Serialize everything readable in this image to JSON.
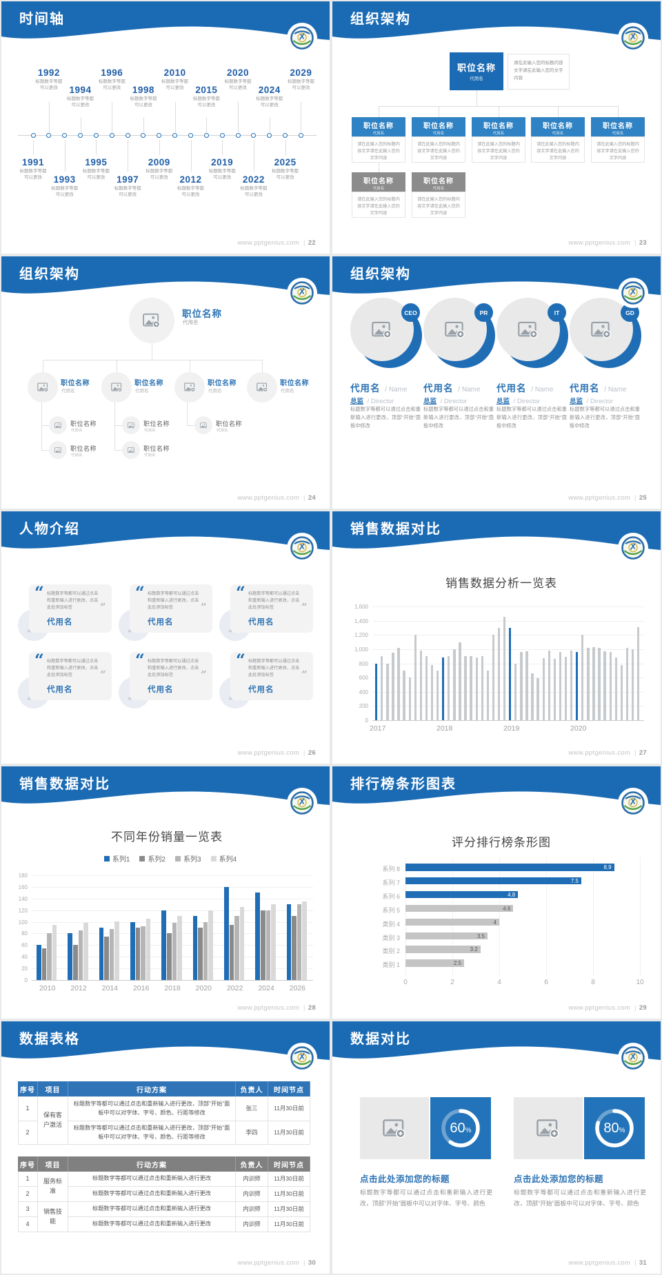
{
  "page": {
    "footer_site": "www.pptgenius.com",
    "footer_divider": "|"
  },
  "colors": {
    "accent": "#1b6bb4",
    "child_blue": "#2f82c3",
    "chart_blue": "#1f6db5",
    "chart_gray": "#c6cacd",
    "table_header_blue": "#2f74b6",
    "table_header_gray": "#808080",
    "name_blue": "#2e74b5",
    "gray_node": "#8c8c8c"
  },
  "icons": {
    "quote_open": "“",
    "quote_close": "”"
  },
  "slides": {
    "timeline": {
      "title": "时间轴",
      "page_no": "22",
      "items": [
        {
          "year": "1991",
          "desc": "标题数字等都可以更改",
          "side": "bottom",
          "level": "high"
        },
        {
          "year": "1992",
          "desc": "标题数字等都可以更改",
          "side": "top",
          "level": "high"
        },
        {
          "year": "1993",
          "desc": "标题数字等都可以更改",
          "side": "bottom",
          "level": "low"
        },
        {
          "year": "1994",
          "desc": "标题数字等都可以更改",
          "side": "top",
          "level": "low"
        },
        {
          "year": "1995",
          "desc": "标题数字等都可以更改",
          "side": "bottom",
          "level": "high"
        },
        {
          "year": "1996",
          "desc": "标题数字等都可以更改",
          "side": "top",
          "level": "high"
        },
        {
          "year": "1997",
          "desc": "标题数字等都可以更改",
          "side": "bottom",
          "level": "low"
        },
        {
          "year": "1998",
          "desc": "标题数字等都可以更改",
          "side": "top",
          "level": "low"
        },
        {
          "year": "2009",
          "desc": "标题数字等都可以更改",
          "side": "bottom",
          "level": "high"
        },
        {
          "year": "2010",
          "desc": "标题数字等都可以更改",
          "side": "top",
          "level": "high"
        },
        {
          "year": "2012",
          "desc": "标题数字等都可以更改",
          "side": "bottom",
          "level": "low"
        },
        {
          "year": "2015",
          "desc": "标题数字等都可以更改",
          "side": "top",
          "level": "low"
        },
        {
          "year": "2019",
          "desc": "标题数字等都可以更改",
          "side": "bottom",
          "level": "high"
        },
        {
          "year": "2020",
          "desc": "标题数字等都可以更改",
          "side": "top",
          "level": "high"
        },
        {
          "year": "2022",
          "desc": "标题数字等都可以更改",
          "side": "bottom",
          "level": "low"
        },
        {
          "year": "2024",
          "desc": "标题数字等都可以更改",
          "side": "top",
          "level": "low"
        },
        {
          "year": "2025",
          "desc": "标题数字等都可以更改",
          "side": "bottom",
          "level": "high"
        },
        {
          "year": "2029",
          "desc": "标题数字等都可以更改",
          "side": "top",
          "level": "high"
        }
      ]
    },
    "org1": {
      "title": "组织架构",
      "page_no": "23",
      "root": {
        "name": "职位名称",
        "alias": "代用名"
      },
      "note": "请在此输入您的标题内容文字请在此输入您的文字内容",
      "children": [
        {
          "name": "职位名称",
          "alias": "代用名",
          "desc": "请在此输入您的标题内容文字请在此输入您的文字内容"
        },
        {
          "name": "职位名称",
          "alias": "代用名",
          "desc": "请在此输入您的标题内容文字请在此输入您的文字内容"
        },
        {
          "name": "职位名称",
          "alias": "代用名",
          "desc": "请在此输入您的标题内容文字请在此输入您的文字内容"
        },
        {
          "name": "职位名称",
          "alias": "代用名",
          "desc": "请在此输入您的标题内容文字请在此输入您的文字内容"
        },
        {
          "name": "职位名称",
          "alias": "代用名",
          "desc": "请在此输入您的标题内容文字请在此输入您的文字内容"
        }
      ],
      "children_gray": [
        {
          "name": "职位名称",
          "alias": "代用名",
          "desc": "请在此输入您的标题内容文字请在此输入您的文字内容"
        },
        {
          "name": "职位名称",
          "alias": "代用名",
          "desc": "请在此输入您的标题内容文字请在此输入您的文字内容"
        }
      ]
    },
    "org2": {
      "title": "组织架构",
      "page_no": "24",
      "root": {
        "name": "职位名称",
        "alias": "代用名"
      },
      "level2": [
        {
          "name": "职位名称",
          "alias": "代用名"
        },
        {
          "name": "职位名称",
          "alias": "代用名"
        },
        {
          "name": "职位名称",
          "alias": "代用名"
        },
        {
          "name": "职位名称",
          "alias": "代用名"
        }
      ],
      "level3_cols": [
        [
          {
            "name": "职位名称",
            "alias": "代用名"
          },
          {
            "name": "职位名称",
            "alias": "代用名"
          }
        ],
        [
          {
            "name": "职位名称",
            "alias": "代用名"
          },
          {
            "name": "职位名称",
            "alias": "代用名"
          }
        ],
        [
          {
            "name": "职位名称",
            "alias": "代用名"
          }
        ]
      ]
    },
    "org3": {
      "title": "组织架构",
      "page_no": "25",
      "members": [
        {
          "badge": "CEO",
          "name": "代用名",
          "name_en": "Name",
          "role": "总监",
          "role_en": "Director",
          "desc": "标题数字等都可以通过点击和重新输入进行更改，顶部“开始”面板中修改"
        },
        {
          "badge": "PR",
          "name": "代用名",
          "name_en": "Name",
          "role": "总监",
          "role_en": "Director",
          "desc": "标题数字等都可以通过点击和重新输入进行更改，顶部“开始”面板中修改"
        },
        {
          "badge": "IT",
          "name": "代用名",
          "name_en": "Name",
          "role": "总监",
          "role_en": "Director",
          "desc": "标题数字等都可以通过点击和重新输入进行更改，顶部“开始”面板中修改"
        },
        {
          "badge": "GD",
          "name": "代用名",
          "name_en": "Name",
          "role": "总监",
          "role_en": "Director",
          "desc": "标题数字等都可以通过点击和重新输入进行更改，顶部“开始”面板中修改"
        }
      ]
    },
    "people": {
      "title": "人物介绍",
      "page_no": "26",
      "cards": [
        {
          "quote": "标题数字等都可以通过点击和重新输入进行更改，点击此处添加标签",
          "name": "代用名"
        },
        {
          "quote": "标题数字等都可以通过点击和重新输入进行更改，点击此处添加标签",
          "name": "代用名"
        },
        {
          "quote": "标题数字等都可以通过点击和重新输入进行更改，点击此处添加标签",
          "name": "代用名"
        },
        {
          "quote": "标题数字等都可以通过点击和重新输入进行更改，点击此处添加标签",
          "name": "代用名"
        },
        {
          "quote": "标题数字等都可以通过点击和重新输入进行更改，点击此处添加标签",
          "name": "代用名"
        },
        {
          "quote": "标题数字等都可以通过点击和重新输入进行更改，点击此处添加标签",
          "name": "代用名"
        }
      ]
    },
    "sales1": {
      "title": "销售数据对比",
      "page_no": "27"
    },
    "sales2": {
      "title": "销售数据对比",
      "page_no": "28"
    },
    "ranking": {
      "title": "排行榜条形图表",
      "page_no": "29"
    },
    "tables": {
      "title": "数据表格",
      "page_no": "30",
      "table1": {
        "headers": [
          "序号",
          "项目",
          "行动方案",
          "负责人",
          "时间节点"
        ],
        "project": "保有客户激活",
        "rows": [
          {
            "no": "1",
            "action": "标题数字等都可以通过点击和重新输入进行更改，顶部“开始”面板中可以对字体、字号、颜色、行距等修改",
            "owner": "张三",
            "time": "11月30日前"
          },
          {
            "no": "2",
            "action": "标题数字等都可以通过点击和重新输入进行更改，顶部“开始”面板中可以对字体、字号、颜色、行距等修改",
            "owner": "李四",
            "time": "11月30日前"
          }
        ]
      },
      "table2": {
        "headers": [
          "序号",
          "项目",
          "行动方案",
          "负责人",
          "时间节点"
        ],
        "groups": [
          {
            "project": "服务标准",
            "rows": [
              {
                "no": "1",
                "action": "标题数字等都可以通过点击和重新输入进行更改",
                "owner": "内训师",
                "time": "11月30日前"
              },
              {
                "no": "2",
                "action": "标题数字等都可以通过点击和重新输入进行更改",
                "owner": "内训师",
                "time": "11月30日前"
              }
            ]
          },
          {
            "project": "销售技能",
            "rows": [
              {
                "no": "3",
                "action": "标题数字等都可以通过点击和重新输入进行更改",
                "owner": "内训师",
                "time": "11月30日前"
              },
              {
                "no": "4",
                "action": "标题数字等都可以通过点击和重新输入进行更改",
                "owner": "内训师",
                "time": "11月30日前"
              }
            ]
          }
        ]
      }
    },
    "compare": {
      "title": "数据对比",
      "page_no": "31",
      "cards": [
        {
          "percent_label": "60",
          "unit": "%",
          "heading": "点击此处添加您的标题",
          "body": "标题数字等都可以通过点击和重新输入进行更改，顶部“开始”面板中可以对字体、字号、颜色"
        },
        {
          "percent_label": "80",
          "unit": "%",
          "heading": "点击此处添加您的标题",
          "body": "标题数字等都可以通过点击和重新输入进行更改，顶部“开始”面板中可以对字体、字号、颜色"
        }
      ]
    }
  },
  "chart_data": [
    {
      "type": "bar",
      "title": "销售数据分析一览表",
      "categories": [
        "2017",
        "2018",
        "2019",
        "2020"
      ],
      "bars_per_group": 12,
      "values": [
        800,
        900,
        800,
        950,
        1020,
        700,
        600,
        1200,
        980,
        900,
        780,
        700,
        880,
        900,
        1000,
        1100,
        900,
        900,
        880,
        900,
        700,
        1200,
        1300,
        1450,
        1300,
        800,
        960,
        970,
        660,
        590,
        870,
        980,
        860,
        960,
        890,
        980,
        960,
        1200,
        1020,
        1030,
        1020,
        970,
        960,
        880,
        780,
        1020,
        1000,
        1310
      ],
      "highlight_indices": [
        0,
        12,
        24,
        36
      ],
      "highlight_color": "#1f6db5",
      "bar_color": "#c6cacd",
      "ylim": [
        0,
        1600
      ],
      "ytick_labels": [
        "0",
        "200",
        "400",
        "600",
        "800",
        "1,000",
        "1,200",
        "1,400",
        "1,600"
      ],
      "grid": true,
      "legend_position": "none"
    },
    {
      "type": "bar",
      "title": "不同年份销量一览表",
      "categories": [
        "2010",
        "2012",
        "2014",
        "2016",
        "2018",
        "2020",
        "2022",
        "2024",
        "2026"
      ],
      "series": [
        {
          "name": "系列1",
          "color": "#1f6db5",
          "values": [
            60,
            80,
            90,
            100,
            120,
            110,
            160,
            150,
            130
          ]
        },
        {
          "name": "系列2",
          "color": "#8a8a8a",
          "values": [
            55,
            60,
            75,
            90,
            80,
            90,
            95,
            120,
            110
          ]
        },
        {
          "name": "系列3",
          "color": "#b5b5b5",
          "values": [
            80,
            85,
            88,
            92,
            98,
            100,
            110,
            120,
            130
          ]
        },
        {
          "name": "系列4",
          "color": "#d9d9d9",
          "values": [
            95,
            98,
            101,
            105,
            110,
            120,
            125,
            130,
            135
          ]
        }
      ],
      "ylim": [
        0,
        180
      ],
      "ytick_step": 20,
      "grid": true,
      "legend_position": "top"
    },
    {
      "type": "bar-horizontal",
      "title": "评分排行榜条形图",
      "categories": [
        "系列 8",
        "系列 7",
        "系列 6",
        "系列 5",
        "类别 4",
        "类别 3",
        "类别 2",
        "类别 1"
      ],
      "values": [
        8.9,
        7.5,
        4.8,
        4.6,
        4,
        3.5,
        3.2,
        2.5
      ],
      "value_labels": [
        "8.9",
        "7.5",
        "4.8",
        "4.6",
        "4",
        "3.5",
        "3.2",
        "2.5"
      ],
      "highlight_count": 3,
      "highlight_color": "#1f6db5",
      "bar_color": "#c4c4c4",
      "xlim": [
        0,
        10
      ],
      "xticks": [
        "0",
        "2",
        "4",
        "6",
        "8",
        "10"
      ],
      "grid": true
    },
    {
      "type": "donut",
      "percent": 60,
      "label": "60",
      "unit": "%"
    },
    {
      "type": "donut",
      "percent": 80,
      "label": "80",
      "unit": "%"
    }
  ]
}
